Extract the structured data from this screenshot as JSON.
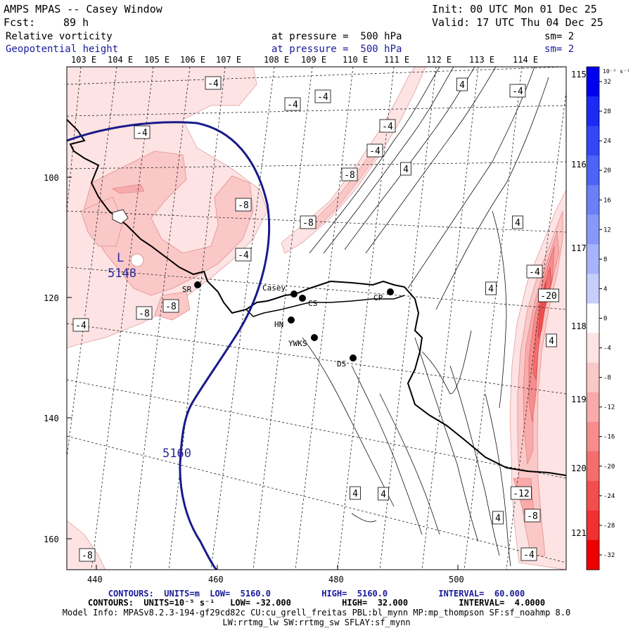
{
  "header": {
    "title": "AMPS MPAS -- Casey Window",
    "init": "Init: 00 UTC Mon 01 Dec 25",
    "fcst_label": "Fcst:",
    "fcst_value": "89 h",
    "valid": "Valid: 17 UTC Thu 04 Dec 25",
    "field1": "Relative vorticity",
    "field1_pressure": "at pressure =  500 hPa",
    "field1_sm": "sm= 2",
    "field2": "Geopotential height",
    "field2_pressure": "at pressure =  500 hPa",
    "field2_sm": "sm= 2"
  },
  "map": {
    "lon_top_labels": [
      "103 E",
      "104 E",
      "105 E",
      "106 E",
      "107 E",
      "108 E",
      "109 E",
      "110 E",
      "111 E",
      "112 E",
      "113 E",
      "114 E"
    ],
    "lon_right_labels": [
      "115 E",
      "116 E",
      "117 E",
      "118 E",
      "119 E",
      "120 E",
      "121 E"
    ],
    "y_axis_ticks": [
      "100",
      "120",
      "140",
      "160"
    ],
    "x_axis_ticks": [
      "440",
      "460",
      "480",
      "500"
    ],
    "stations": [
      {
        "code": "SR"
      },
      {
        "code": "Casey"
      },
      {
        "code": "CS"
      },
      {
        "code": "HN"
      },
      {
        "code": "YWKS"
      },
      {
        "code": "DS"
      },
      {
        "code": "CP"
      }
    ],
    "height_low_label": "L",
    "height_low_value": "5148",
    "height_contour_label": "5160",
    "vorticity_labels": [
      "-4",
      "-4",
      "-4",
      "-4",
      "-4",
      "-4",
      "-4",
      "-4",
      "-4",
      "-4",
      "-8",
      "-8",
      "-8",
      "-8",
      "-8",
      "-8",
      "-12",
      "-8",
      "-20",
      "4",
      "4",
      "4",
      "4",
      "4",
      "4",
      "4",
      "4",
      "-4"
    ]
  },
  "colorbar": {
    "unit": "10⁻⁵ s⁻¹",
    "labels": [
      "32",
      "28",
      "24",
      "20",
      "16",
      "12",
      "8",
      "4",
      "0",
      "-4",
      "-8",
      "-12",
      "-16",
      "-20",
      "-24",
      "-28",
      "-32"
    ],
    "colors": [
      "#0000ee",
      "#1a2bf4",
      "#3347f5",
      "#4e63f7",
      "#6a7ff8",
      "#8898fa",
      "#a7b3fb",
      "#c6cefd",
      "#ffffff",
      "#fde3e3",
      "#fbc8c8",
      "#f9aaaa",
      "#f78c8c",
      "#f56d6d",
      "#f34e4e",
      "#f13030",
      "#ee0000"
    ]
  },
  "footer": {
    "line1": "CONTOURS:  UNITS=m  LOW=  5160.0          HIGH=  5160.0          INTERVAL=  60.000",
    "line2": "CONTOURS:  UNITS=10⁻⁵ s⁻¹   LOW= -32.000          HIGH=  32.000          INTERVAL=  4.0000",
    "line3": "Model Info: MPASv8.2.3-194-gf29cd82c CU:cu_grell_freitas PBL:bl_mynn MP:mp_thompson SF:sf_noahmp 8.0",
    "line4": "LW:rrtmg_lw SW:rrtmg_sw SFLAY:sf_mynn"
  }
}
